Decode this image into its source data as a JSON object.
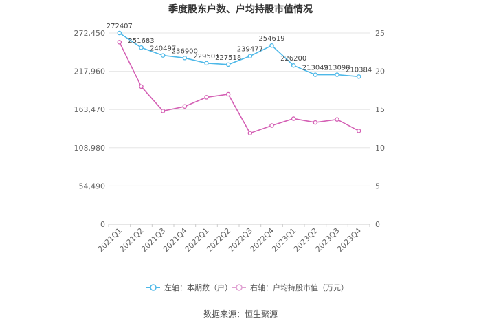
{
  "chart_data": {
    "type": "line",
    "title": "季度股东户数、户均持股市值情况",
    "categories": [
      "2021Q1",
      "2021Q2",
      "2021Q3",
      "2021Q4",
      "2022Q1",
      "2022Q2",
      "2022Q3",
      "2022Q4",
      "2023Q1",
      "2023Q2",
      "2023Q3",
      "2023Q4"
    ],
    "left_axis": {
      "ylim": [
        0,
        272450
      ],
      "ticks": [
        "0",
        "54,490",
        "108,980",
        "163,470",
        "217,960",
        "272,450"
      ],
      "tick_values": [
        0,
        54490,
        108980,
        163470,
        217960,
        272450
      ]
    },
    "right_axis": {
      "ylim": [
        0,
        25
      ],
      "ticks": [
        "0",
        "5",
        "10",
        "15",
        "20",
        "25"
      ],
      "tick_values": [
        0,
        5,
        10,
        15,
        20,
        25
      ]
    },
    "series": [
      {
        "name": "左轴：本期数（户）",
        "axis": "left",
        "color": "#4db8e8",
        "values": [
          272407,
          251683,
          240497,
          236900,
          229501,
          227518,
          239477,
          254619,
          226200,
          213049,
          213098,
          210384
        ],
        "labels": [
          "272407",
          "251683",
          "240497",
          "236900",
          "229501",
          "227518",
          "239477",
          "254619",
          "226200",
          "213049",
          "213098",
          "210384"
        ]
      },
      {
        "name": "右轴：户均持股市值（万元）",
        "axis": "right",
        "color": "#d45fb4",
        "values": [
          23.8,
          18.0,
          14.8,
          15.4,
          16.6,
          17.0,
          11.9,
          12.9,
          13.8,
          13.3,
          13.7,
          12.2
        ]
      }
    ],
    "grid": true,
    "legend_position": "bottom"
  },
  "footer": {
    "source": "数据来源：恒生聚源"
  }
}
